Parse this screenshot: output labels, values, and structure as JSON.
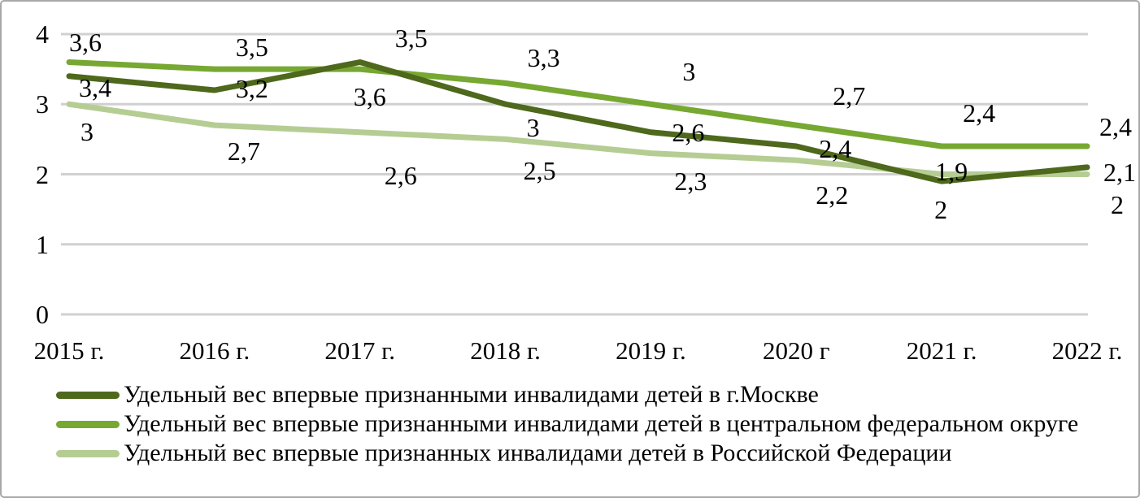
{
  "figure": {
    "background": "#ffffff",
    "border_color": "#a8a8a8"
  },
  "chart_data": {
    "type": "line",
    "title": "",
    "xlabel": "",
    "ylabel": "",
    "categories": [
      "2015 г.",
      "2016 г.",
      "2017 г.",
      "2018 г.",
      "2019 г.",
      "2020 г",
      "2021 г.",
      "2022 г."
    ],
    "y_ticks": [
      "4",
      "3",
      "2",
      "1",
      "0"
    ],
    "y_tick_values": [
      4,
      3,
      2,
      1,
      0
    ],
    "ylim": [
      0,
      4
    ],
    "grid": "horizontal",
    "gridline_color": "#d0d0d0",
    "legend_position": "bottom-left",
    "decimal_separator": ",",
    "series": [
      {
        "name": "Удельный вес впервые признанными инвалидами детей в г.Москве",
        "color": "#4e681c",
        "values": [
          3.4,
          3.2,
          3.6,
          3.0,
          2.6,
          2.4,
          1.9,
          2.1
        ],
        "labels": [
          "3,4",
          "3,2",
          "3,6",
          "3",
          "2,6",
          "2,4",
          "1,9",
          "2,1"
        ]
      },
      {
        "name": "Удельный вес впервые признанными инвалидами детей в центральном федеральном округе",
        "color": "#76a832",
        "values": [
          3.6,
          3.5,
          3.5,
          3.3,
          3.0,
          2.7,
          2.4,
          2.4
        ],
        "labels": [
          "3,6",
          "3,5",
          "3,5",
          "3,3",
          "3",
          "2,7",
          "2,4",
          "2,4"
        ]
      },
      {
        "name": "Удельный вес впервые признанных инвалидами детей в Российской Федерации",
        "color": "#b5cd93",
        "values": [
          3.0,
          2.7,
          2.6,
          2.5,
          2.3,
          2.2,
          2.0,
          2.0
        ],
        "labels": [
          "3",
          "2,7",
          "2,6",
          "2,5",
          "2,3",
          "2,2",
          "2",
          "2"
        ]
      }
    ]
  }
}
